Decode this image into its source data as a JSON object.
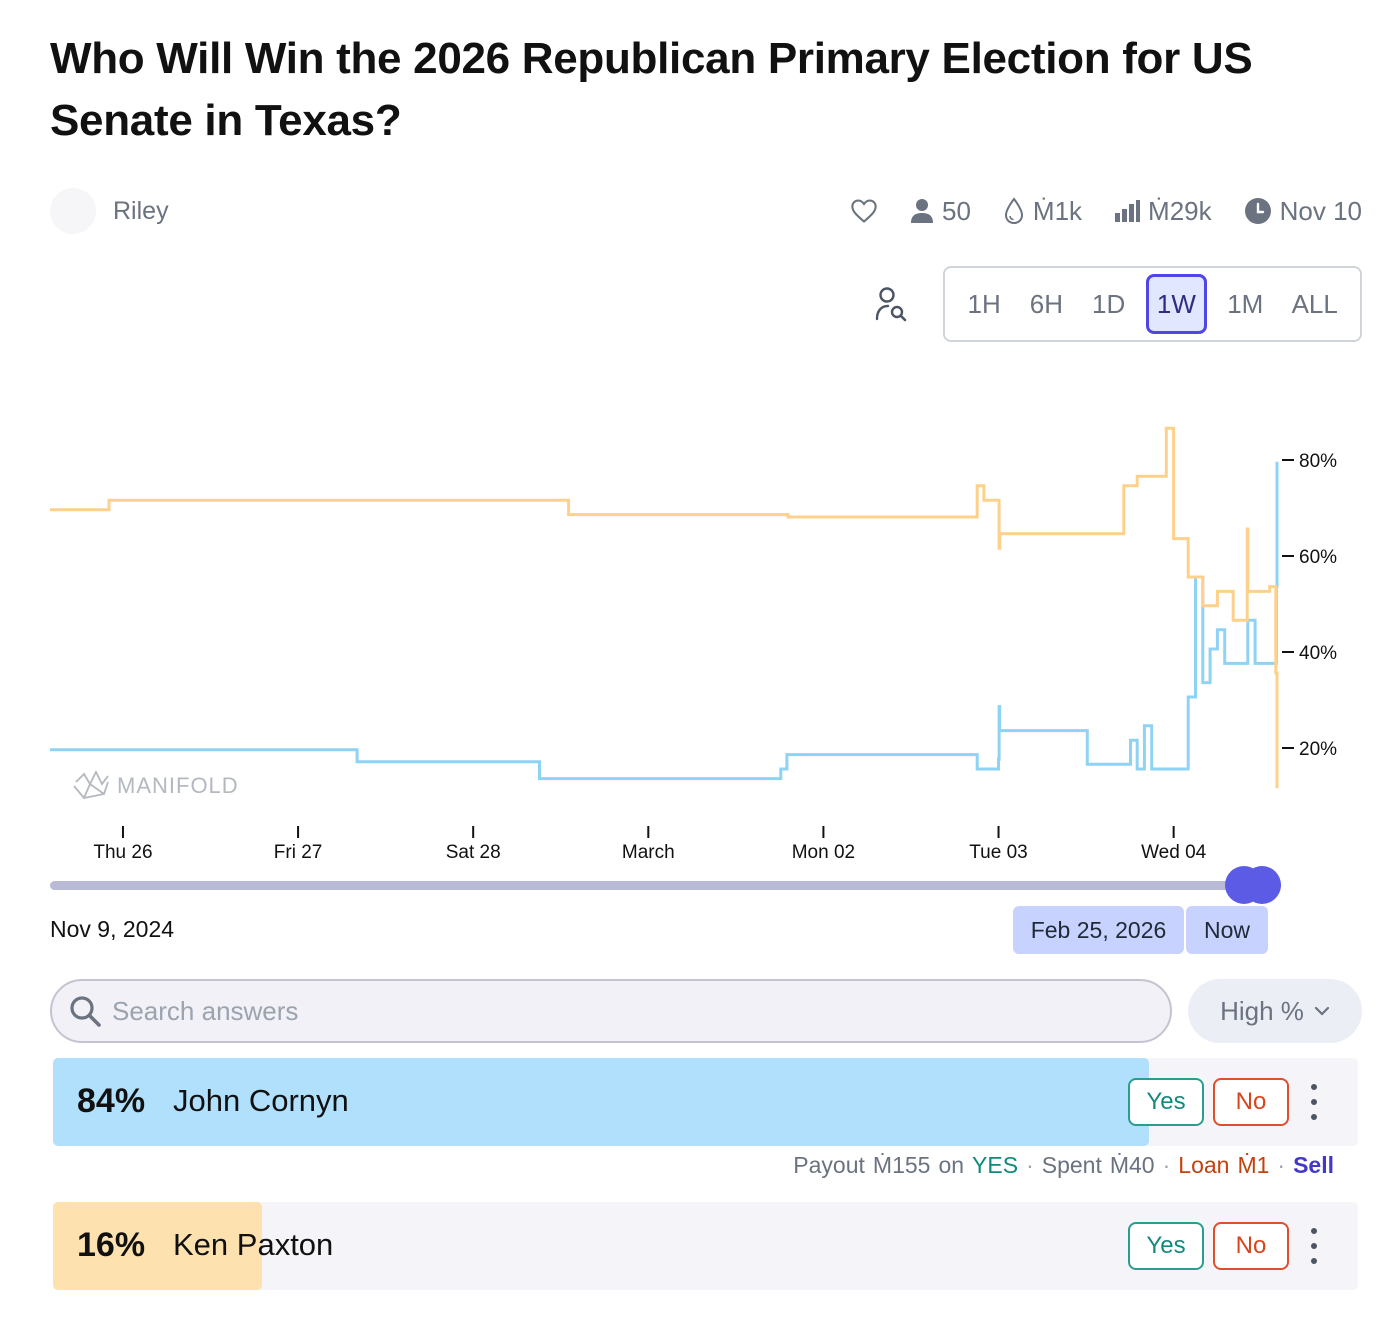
{
  "title": "Who Will Win the 2026 Republican Primary Election for US Senate in Texas?",
  "creator": {
    "name": "Riley"
  },
  "stats": {
    "like_icon": "heart-icon",
    "traders_icon": "user-icon",
    "traders": "50",
    "liquidity_icon": "droplet-icon",
    "liquidity": "Ṁ1k",
    "volume_icon": "bar-chart-icon",
    "volume": "Ṁ29k",
    "close_icon": "clock-icon",
    "close_date": "Nov 10"
  },
  "time_ranges": [
    "1H",
    "6H",
    "1D",
    "1W",
    "1M",
    "ALL"
  ],
  "active_range": "1W",
  "colors": {
    "cornyn": "#8fd3f4",
    "paxton": "#fdd18b",
    "accent": "#5b5be6"
  },
  "chart_data": {
    "type": "line",
    "watermark": "MANIFOLD",
    "x_ticks": [
      "Thu 26",
      "Fri 27",
      "Sat 28",
      "March",
      "Mon 02",
      "Tue 03",
      "Wed 04"
    ],
    "y_ticks": [
      "80%",
      "60%",
      "40%",
      "20%"
    ],
    "ylim": [
      0,
      100
    ],
    "grid": false,
    "series": [
      {
        "name": "John Cornyn",
        "color": "#8fd3f4",
        "points": [
          [
            "Feb 25 14:00",
            24
          ],
          [
            "Feb 27 08:00",
            24
          ],
          [
            "Feb 27 08:05",
            21.5
          ],
          [
            "Feb 28 09:00",
            21.5
          ],
          [
            "Feb 28 09:05",
            18
          ],
          [
            "Mar 01 18:00",
            18
          ],
          [
            "Mar 01 18:10",
            20
          ],
          [
            "Mar 01 19:00",
            23
          ],
          [
            "Mar 02 21:00",
            23
          ],
          [
            "Mar 02 21:05",
            20
          ],
          [
            "Mar 03 00:00",
            22
          ],
          [
            "Mar 03 00:05",
            33
          ],
          [
            "Mar 03 00:10",
            28
          ],
          [
            "Mar 03 12:00",
            28
          ],
          [
            "Mar 03 12:10",
            21
          ],
          [
            "Mar 03 18:00",
            21
          ],
          [
            "Mar 03 18:05",
            26
          ],
          [
            "Mar 03 19:00",
            20
          ],
          [
            "Mar 03 20:00",
            29
          ],
          [
            "Mar 03 21:00",
            20
          ],
          [
            "Mar 04 00:00",
            20
          ],
          [
            "Mar 04 02:00",
            35
          ],
          [
            "Mar 04 03:00",
            60
          ],
          [
            "Mar 04 04:00",
            38
          ],
          [
            "Mar 04 05:00",
            45
          ],
          [
            "Mar 04 06:00",
            49
          ],
          [
            "Mar 04 07:00",
            42
          ],
          [
            "Mar 04 10:00",
            42
          ],
          [
            "Mar 04 10:10",
            51
          ],
          [
            "Mar 04 11:00",
            51
          ],
          [
            "Mar 04 11:10",
            42
          ],
          [
            "Mar 04 14:00",
            42
          ],
          [
            "Mar 04 14:05",
            58
          ],
          [
            "Mar 04 14:10",
            84
          ]
        ]
      },
      {
        "name": "Ken Paxton",
        "color": "#fdd18b",
        "points": [
          [
            "Feb 25 14:00",
            74
          ],
          [
            "Feb 25 22:00",
            74
          ],
          [
            "Feb 25 22:05",
            76
          ],
          [
            "Feb 28 13:00",
            76
          ],
          [
            "Feb 28 13:05",
            73
          ],
          [
            "Mar 01 19:00",
            73
          ],
          [
            "Mar 01 19:10",
            72.5
          ],
          [
            "Mar 02 21:00",
            72.5
          ],
          [
            "Mar 02 21:05",
            79
          ],
          [
            "Mar 02 22:00",
            76
          ],
          [
            "Mar 03 00:00",
            76
          ],
          [
            "Mar 03 00:05",
            66
          ],
          [
            "Mar 03 00:10",
            69
          ],
          [
            "Mar 03 17:00",
            69
          ],
          [
            "Mar 03 17:10",
            79
          ],
          [
            "Mar 03 19:00",
            81
          ],
          [
            "Mar 03 22:00",
            81
          ],
          [
            "Mar 03 23:00",
            91
          ],
          [
            "Mar 04 00:00",
            68
          ],
          [
            "Mar 04 02:00",
            60
          ],
          [
            "Mar 04 04:00",
            54
          ],
          [
            "Mar 04 06:00",
            57
          ],
          [
            "Mar 04 08:00",
            57
          ],
          [
            "Mar 04 08:10",
            51
          ],
          [
            "Mar 04 10:00",
            51
          ],
          [
            "Mar 04 10:05",
            70
          ],
          [
            "Mar 04 10:10",
            57
          ],
          [
            "Mar 04 13:00",
            57
          ],
          [
            "Mar 04 13:10",
            58
          ],
          [
            "Mar 04 14:00",
            40
          ],
          [
            "Mar 04 14:10",
            16
          ]
        ]
      }
    ]
  },
  "slider": {
    "start_label": "Nov 9, 2024",
    "current_label": "Feb 25, 2026",
    "now_label": "Now"
  },
  "search": {
    "placeholder": "Search answers",
    "icon": "search-icon"
  },
  "sort": {
    "label": "High %",
    "icon": "chevron-down-icon"
  },
  "answers": [
    {
      "percent": "84%",
      "probability": 0.84,
      "name": "John Cornyn",
      "color": "#b1e0fc",
      "yes_label": "Yes",
      "no_label": "No",
      "position": {
        "payout_label": "Payout",
        "payout": "Ṁ155",
        "on_label": "on",
        "outcome": "YES",
        "spent_label": "Spent",
        "spent": "Ṁ40",
        "loan_label": "Loan",
        "loan": "Ṁ1",
        "sell_label": "Sell"
      }
    },
    {
      "percent": "16%",
      "probability": 0.16,
      "name": "Ken Paxton",
      "color": "#fde2b0",
      "yes_label": "Yes",
      "no_label": "No"
    }
  ]
}
